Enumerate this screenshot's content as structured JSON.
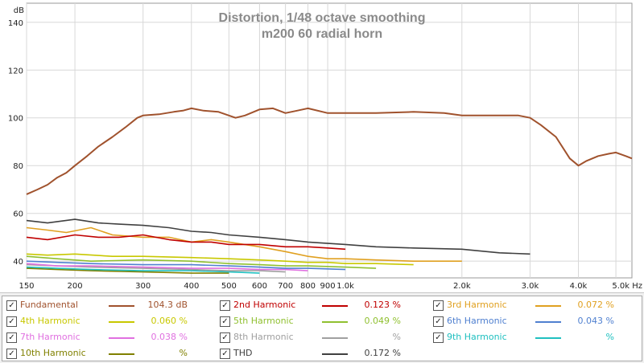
{
  "chart_data": {
    "type": "line",
    "title": "Distortion, 1/48 octave smoothing",
    "subtitle": "m200 60 radial horn",
    "ylabel": "dB",
    "xscale": "log",
    "xlim": [
      150,
      5500
    ],
    "ylim": [
      33,
      148
    ],
    "grid": true,
    "xticks": [
      150,
      200,
      300,
      400,
      500,
      600,
      700,
      800,
      900,
      1000,
      2000,
      3000,
      4000,
      5000
    ],
    "xtick_labels": [
      "150",
      "200",
      "300",
      "400",
      "500",
      "600",
      "700",
      "800",
      "900",
      "1.0k",
      "2.0k",
      "3.0k",
      "4.0k",
      "5.0k Hz"
    ],
    "yticks": [
      40,
      60,
      80,
      100,
      120,
      140
    ],
    "ytick_labels": [
      "40",
      "60",
      "80",
      "100",
      "120",
      "140"
    ],
    "series": [
      {
        "name": "Fundamental",
        "color": "#a0522d",
        "x": [
          150,
          160,
          170,
          180,
          190,
          200,
          215,
          230,
          250,
          270,
          290,
          300,
          330,
          360,
          380,
          400,
          430,
          470,
          520,
          550,
          600,
          650,
          700,
          750,
          800,
          900,
          1000,
          1200,
          1500,
          1800,
          2000,
          2200,
          2500,
          2800,
          3000,
          3200,
          3500,
          3800,
          4000,
          4200,
          4500,
          4800,
          5000,
          5300,
          5500
        ],
        "y": [
          68,
          70,
          72,
          75,
          77,
          80,
          84,
          88,
          92,
          96,
          100,
          101,
          101.5,
          102.5,
          103,
          104,
          103,
          102.5,
          100,
          101,
          103.5,
          104,
          102,
          103,
          104,
          102,
          102,
          102,
          102.5,
          102,
          101,
          101,
          101,
          101,
          100,
          97,
          92,
          83,
          80,
          82,
          84,
          85,
          85.5,
          84,
          83
        ]
      },
      {
        "name": "2nd Harmonic",
        "color": "#c00000",
        "x": [
          150,
          170,
          200,
          230,
          260,
          300,
          350,
          400,
          450,
          500,
          600,
          700,
          800,
          900,
          1000
        ],
        "y": [
          50,
          49,
          51,
          50,
          50,
          51,
          49,
          48,
          48,
          47,
          47,
          46,
          46,
          45.5,
          45
        ]
      },
      {
        "name": "3rd Harmonic",
        "color": "#e0a020",
        "x": [
          150,
          170,
          190,
          220,
          250,
          300,
          350,
          400,
          450,
          500,
          600,
          700,
          800,
          900,
          1000,
          1200,
          1500,
          2000
        ],
        "y": [
          54,
          53,
          52,
          54,
          51,
          50,
          50,
          48,
          49,
          48,
          46,
          44,
          42,
          41,
          41,
          40.5,
          40,
          40
        ]
      },
      {
        "name": "4th Harmonic",
        "color": "#c8c800",
        "x": [
          150,
          170,
          200,
          250,
          300,
          400,
          500,
          600,
          700,
          800,
          900,
          1000,
          1200,
          1500
        ],
        "y": [
          43,
          42.5,
          43,
          42,
          42,
          41.5,
          41,
          40.5,
          40,
          39.5,
          39.5,
          39,
          39,
          38.5
        ]
      },
      {
        "name": "5th Harmonic",
        "color": "#90c030",
        "x": [
          150,
          180,
          220,
          300,
          400,
          500,
          600,
          700,
          800,
          1000,
          1200
        ],
        "y": [
          42,
          41,
          40,
          40.5,
          40,
          39,
          38.5,
          38,
          38,
          37.5,
          37
        ]
      },
      {
        "name": "6th Harmonic",
        "color": "#5080d0",
        "x": [
          150,
          180,
          220,
          300,
          400,
          500,
          600,
          700,
          800,
          1000
        ],
        "y": [
          40,
          39.5,
          39,
          38.5,
          38.5,
          38,
          37.5,
          37,
          37,
          36.5
        ]
      },
      {
        "name": "7th Harmonic",
        "color": "#e070e0",
        "x": [
          150,
          180,
          220,
          300,
          400,
          500,
          600,
          700,
          800
        ],
        "y": [
          39,
          38,
          38,
          37.5,
          37,
          37,
          36.5,
          36.5,
          36
        ]
      },
      {
        "name": "8th Harmonic",
        "color": "#a0a0a0",
        "x": [
          150,
          180,
          220,
          300,
          400,
          500,
          600,
          700
        ],
        "y": [
          38.5,
          38,
          37.5,
          37,
          36.5,
          36,
          36,
          35.5
        ]
      },
      {
        "name": "9th Harmonic",
        "color": "#20c0c0",
        "x": [
          150,
          180,
          220,
          300,
          400,
          500,
          600
        ],
        "y": [
          37.5,
          37,
          36.5,
          36,
          36,
          35.5,
          35
        ]
      },
      {
        "name": "10th Harmonic",
        "color": "#808000",
        "x": [
          150,
          180,
          220,
          300,
          400,
          500
        ],
        "y": [
          37,
          36.5,
          36,
          35.5,
          35,
          35
        ]
      },
      {
        "name": "THD",
        "color": "#404040",
        "x": [
          150,
          170,
          200,
          230,
          260,
          300,
          350,
          400,
          450,
          500,
          600,
          700,
          800,
          1000,
          1200,
          1500,
          2000,
          2500,
          3000
        ],
        "y": [
          57,
          56,
          57.5,
          56,
          55.5,
          55,
          54,
          52.5,
          52,
          51,
          50,
          49,
          48,
          47,
          46,
          45.5,
          45,
          43.5,
          43
        ]
      }
    ]
  },
  "legend": {
    "items": [
      {
        "name": "Fundamental",
        "value": "104.3 dB",
        "color": "#a0522d",
        "checked": "✓"
      },
      {
        "name": "2nd Harmonic",
        "value": "0.123 %",
        "color": "#c00000",
        "checked": "✓"
      },
      {
        "name": "3rd Harmonic",
        "value": "0.072 %",
        "color": "#e0a020",
        "checked": "✓"
      },
      {
        "name": "4th Harmonic",
        "value": "0.060 %",
        "color": "#c8c800",
        "checked": "✓"
      },
      {
        "name": "5th Harmonic",
        "value": "0.049 %",
        "color": "#90c030",
        "checked": "✓"
      },
      {
        "name": "6th Harmonic",
        "value": "0.043 %",
        "color": "#5080d0",
        "checked": "✓"
      },
      {
        "name": "7th Harmonic",
        "value": "0.038 %",
        "color": "#e070e0",
        "checked": "✓"
      },
      {
        "name": "8th Harmonic",
        "value": "%",
        "color": "#a0a0a0",
        "checked": "✓"
      },
      {
        "name": "9th Harmonic",
        "value": "%",
        "color": "#20c0c0",
        "checked": "✓"
      },
      {
        "name": "10th Harmonic",
        "value": "%",
        "color": "#808000",
        "checked": "✓"
      },
      {
        "name": "THD",
        "value": "0.172 %",
        "color": "#404040",
        "checked": "✓"
      }
    ]
  }
}
